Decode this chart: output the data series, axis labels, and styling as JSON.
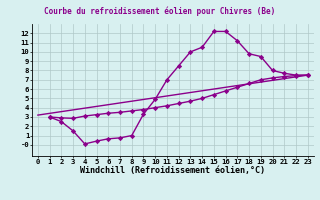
{
  "line1_x": [
    1,
    2,
    3,
    4,
    5,
    6,
    7,
    8,
    9,
    10,
    11,
    12,
    13,
    14,
    15,
    16,
    17,
    18,
    19,
    20,
    21,
    22,
    23
  ],
  "line1_y": [
    3.0,
    2.5,
    1.5,
    0.1,
    0.4,
    0.65,
    0.75,
    1.0,
    3.3,
    4.9,
    7.0,
    8.5,
    10.0,
    10.5,
    12.2,
    12.2,
    11.2,
    9.8,
    9.5,
    8.0,
    7.7,
    7.5,
    7.5
  ],
  "line2_x": [
    1,
    2,
    3,
    4,
    5,
    6,
    7,
    8,
    9,
    10,
    11,
    12,
    13,
    14,
    15,
    16,
    17,
    18,
    19,
    20,
    21,
    22,
    23
  ],
  "line2_y": [
    3.0,
    2.9,
    2.85,
    3.1,
    3.25,
    3.4,
    3.5,
    3.65,
    3.8,
    4.0,
    4.2,
    4.45,
    4.7,
    5.0,
    5.4,
    5.8,
    6.2,
    6.6,
    7.0,
    7.2,
    7.35,
    7.45,
    7.5
  ],
  "line3_x": [
    0,
    23
  ],
  "line3_y": [
    3.2,
    7.5
  ],
  "line_color": "#8B008B",
  "bg_color": "#d8f0f0",
  "grid_color": "#b0c8c8",
  "xlabel": "Windchill (Refroidissement éolien,°C)",
  "xlim": [
    -0.5,
    23.5
  ],
  "ylim": [
    -1.2,
    13
  ],
  "xticks": [
    0,
    1,
    2,
    3,
    4,
    5,
    6,
    7,
    8,
    9,
    10,
    11,
    12,
    13,
    14,
    15,
    16,
    17,
    18,
    19,
    20,
    21,
    22,
    23
  ],
  "yticks": [
    0,
    1,
    2,
    3,
    4,
    5,
    6,
    7,
    8,
    9,
    10,
    11,
    12
  ],
  "marker": "D",
  "marker_size": 2.2,
  "line_width": 1.0,
  "xlabel_fontsize": 6.0,
  "tick_fontsize": 5.2,
  "title": "Courbe du refroidissement éolien pour Chivres (Be)",
  "title_fontsize": 5.5
}
